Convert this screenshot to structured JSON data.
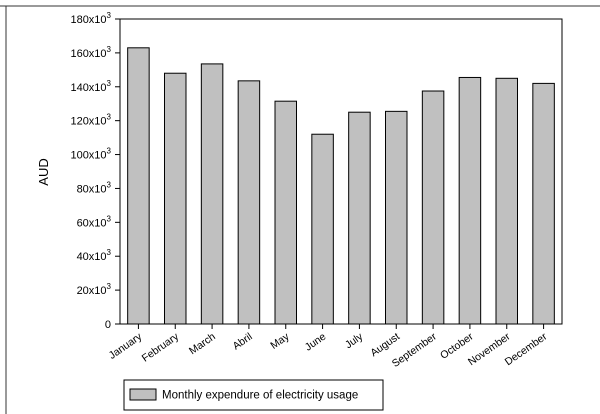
{
  "chart_data": {
    "type": "bar",
    "title": "",
    "xlabel": "",
    "ylabel": "AUD",
    "ylim": [
      0,
      180000
    ],
    "yticks": [
      {
        "value": 0,
        "base": "0",
        "exp": ""
      },
      {
        "value": 20000,
        "base": "20x10",
        "exp": "3"
      },
      {
        "value": 40000,
        "base": "40x10",
        "exp": "3"
      },
      {
        "value": 60000,
        "base": "60x10",
        "exp": "3"
      },
      {
        "value": 80000,
        "base": "80x10",
        "exp": "3"
      },
      {
        "value": 100000,
        "base": "100x10",
        "exp": "3"
      },
      {
        "value": 120000,
        "base": "120x10",
        "exp": "3"
      },
      {
        "value": 140000,
        "base": "140x10",
        "exp": "3"
      },
      {
        "value": 160000,
        "base": "160x10",
        "exp": "3"
      },
      {
        "value": 180000,
        "base": "180x10",
        "exp": "3"
      }
    ],
    "categories": [
      "January",
      "February",
      "March",
      "Abril",
      "May",
      "June",
      "July",
      "August",
      "September",
      "October",
      "November",
      "December"
    ],
    "series": [
      {
        "name": "Monthly expendure of electricity usage",
        "color": "#c0c0c0",
        "values": [
          163000,
          148000,
          153500,
          143500,
          131500,
          112000,
          125000,
          125500,
          137500,
          145500,
          145000,
          142000
        ]
      }
    ],
    "legend_position": "bottom-left",
    "grid": false
  }
}
